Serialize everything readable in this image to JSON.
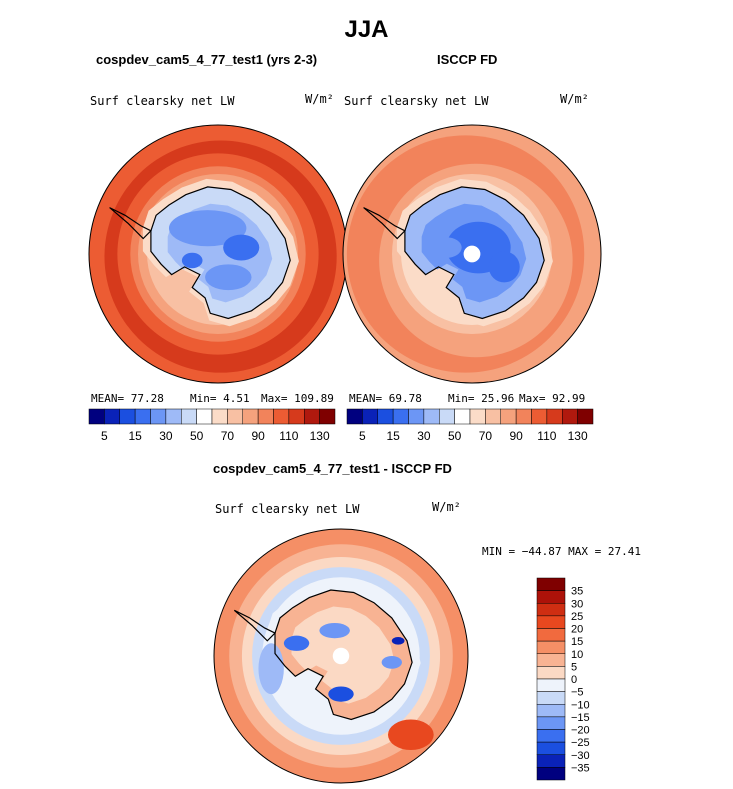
{
  "figure": {
    "title": "JJA",
    "units": "W/m²",
    "variable": "Surf clearsky net LW"
  },
  "panels": {
    "left": {
      "subtitle": "cospdev_cam5_4_77_test1 (yrs 2-3)",
      "mean": "MEAN=  77.28",
      "min": "Min=   4.51",
      "max": "Max= 109.89"
    },
    "right": {
      "subtitle": "ISCCP FD",
      "mean": "MEAN=  69.78",
      "min": "Min=  25.96",
      "max": "Max=  92.99"
    },
    "diff": {
      "subtitle": "cospdev_cam5_4_77_test1 - ISCCP FD",
      "minmax": "MIN = −44.87 MAX =  27.41"
    }
  },
  "chart_data": [
    {
      "type": "heatmap",
      "title": "cospdev_cam5_4_77_test1 (yrs 2-3)",
      "field": "Surf clearsky net LW",
      "units": "W/m²",
      "stats": {
        "mean": 77.28,
        "min": 4.51,
        "max": 109.89
      },
      "colorbar": {
        "levels": [
          5,
          10,
          15,
          20,
          30,
          40,
          50,
          60,
          70,
          80,
          90,
          100,
          110,
          120,
          130
        ],
        "tick_labels": [
          "5",
          "15",
          "30",
          "50",
          "70",
          "90",
          "110",
          "130"
        ]
      }
    },
    {
      "type": "heatmap",
      "title": "ISCCP FD",
      "field": "Surf clearsky net LW",
      "units": "W/m²",
      "stats": {
        "mean": 69.78,
        "min": 25.96,
        "max": 92.99
      },
      "colorbar": {
        "levels": [
          5,
          10,
          15,
          20,
          30,
          40,
          50,
          60,
          70,
          80,
          90,
          100,
          110,
          120,
          130
        ],
        "tick_labels": [
          "5",
          "15",
          "30",
          "50",
          "70",
          "90",
          "110",
          "130"
        ]
      }
    },
    {
      "type": "heatmap",
      "title": "cospdev_cam5_4_77_test1 - ISCCP FD",
      "field": "Surf clearsky net LW",
      "units": "W/m²",
      "stats": {
        "min": -44.87,
        "max": 27.41
      },
      "colorbar": {
        "tick_labels": [
          "35",
          "30",
          "25",
          "20",
          "15",
          "10",
          "5",
          "0",
          "−5",
          "−10",
          "−15",
          "−20",
          "−25",
          "−30",
          "−35"
        ]
      }
    }
  ],
  "colors": {
    "seq": [
      "#00007f",
      "#0a22b8",
      "#1b4fe0",
      "#3a6ff0",
      "#6c96f5",
      "#9ebaf7",
      "#c9daf7",
      "#ffffff",
      "#fbdcc8",
      "#f8c0a3",
      "#f5a27d",
      "#f2835b",
      "#ec5c33",
      "#d63a1c",
      "#b0190e",
      "#7f0000"
    ],
    "div": [
      "#7f0000",
      "#ad1209",
      "#cf2e12",
      "#e8481f",
      "#f16a3e",
      "#f58f66",
      "#f8b393",
      "#fbd9c4",
      "#eef3fb",
      "#c9daf7",
      "#9ebaf7",
      "#6c96f5",
      "#3a6ff0",
      "#1b4fe0",
      "#0a22b8",
      "#00007f"
    ]
  }
}
